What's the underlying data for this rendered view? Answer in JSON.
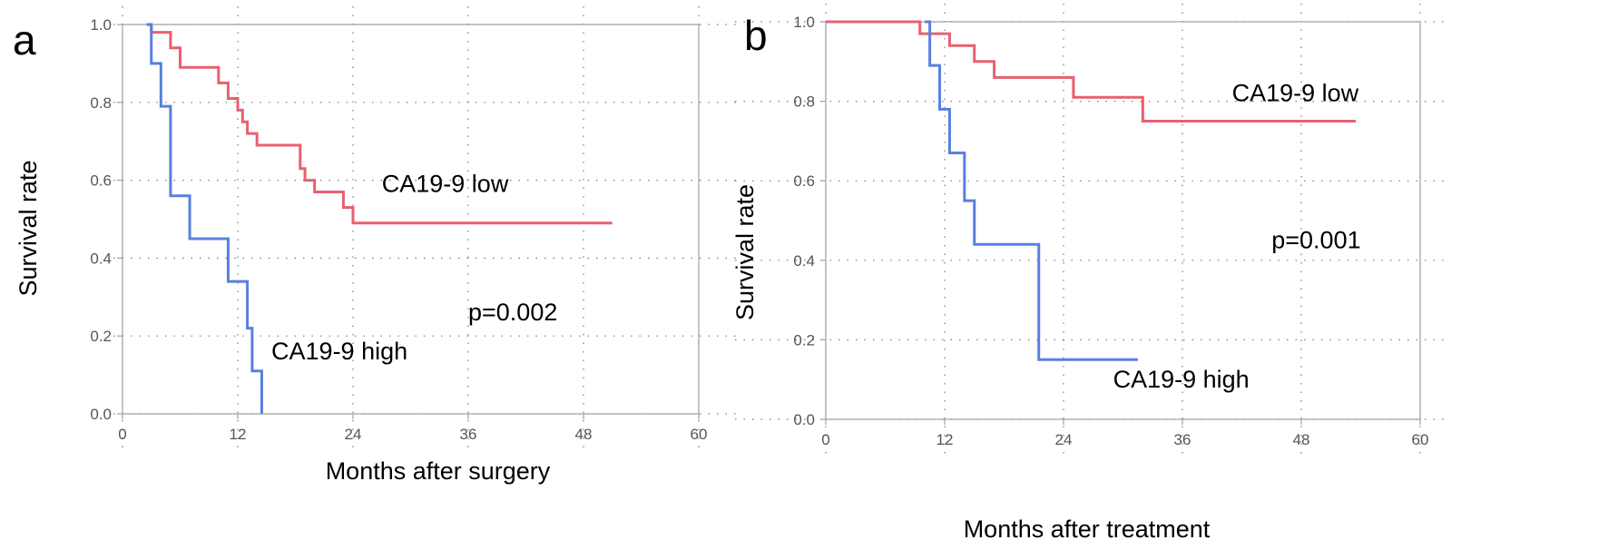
{
  "chart_data": [
    {
      "type": "line",
      "panel": "a",
      "title": "",
      "xlabel": "Months after surgery",
      "ylabel": "Survival rate",
      "xlim": [
        0,
        60
      ],
      "ylim": [
        0,
        1
      ],
      "xticks": [
        0,
        12,
        24,
        36,
        48,
        60
      ],
      "yticks": [
        "0.0",
        "0.2",
        "0.4",
        "0.6",
        "0.8",
        "1.0"
      ],
      "grid": true,
      "step": true,
      "p_value": "p=0.002",
      "series": [
        {
          "name": "CA19-9 low",
          "color": "#e8606f",
          "x": [
            3,
            5,
            6,
            10,
            11,
            12,
            12.5,
            13,
            14,
            15,
            18.5,
            19,
            20,
            23,
            24,
            51
          ],
          "y": [
            0.98,
            0.94,
            0.89,
            0.85,
            0.81,
            0.78,
            0.75,
            0.72,
            0.69,
            0.69,
            0.63,
            0.6,
            0.57,
            0.53,
            0.49,
            0.49
          ]
        },
        {
          "name": "CA19-9 high",
          "color": "#5a7fe0",
          "x": [
            2.5,
            3,
            4,
            5,
            7,
            11,
            13,
            13.5,
            14.5
          ],
          "y": [
            1.0,
            0.9,
            0.79,
            0.56,
            0.45,
            0.34,
            0.22,
            0.11,
            0.0
          ]
        }
      ],
      "annotations": [
        {
          "text": "CA19-9 low",
          "x": 27,
          "y": 0.57
        },
        {
          "text": "CA19-9 high",
          "x": 15.5,
          "y": 0.14
        },
        {
          "text": "p=0.002",
          "x": 36,
          "y": 0.24
        }
      ]
    },
    {
      "type": "line",
      "panel": "b",
      "title": "",
      "xlabel": "Months after treatment",
      "ylabel": "Survival rate",
      "xlim": [
        0,
        60
      ],
      "ylim": [
        0,
        1
      ],
      "xticks": [
        0,
        12,
        24,
        36,
        48,
        60
      ],
      "yticks": [
        "0.0",
        "0.2",
        "0.4",
        "0.6",
        "0.8",
        "1.0"
      ],
      "grid": true,
      "step": true,
      "p_value": "p=0.001",
      "series": [
        {
          "name": "CA19-9 low",
          "color": "#e8606f",
          "x": [
            0,
            9.5,
            12.5,
            15,
            17,
            25,
            32,
            53.5
          ],
          "y": [
            1.0,
            0.97,
            0.94,
            0.9,
            0.86,
            0.81,
            0.75,
            0.75
          ]
        },
        {
          "name": "CA19-9 high",
          "color": "#5a7fe0",
          "x": [
            10,
            10.5,
            11.5,
            12.5,
            14,
            15,
            21.5,
            31.5
          ],
          "y": [
            1.0,
            0.89,
            0.78,
            0.67,
            0.55,
            0.44,
            0.15,
            0.15
          ]
        }
      ],
      "annotations": [
        {
          "text": "CA19-9 low",
          "x": 41,
          "y": 0.8
        },
        {
          "text": "CA19-9 high",
          "x": 29,
          "y": 0.08
        },
        {
          "text": "p=0.001",
          "x": 45,
          "y": 0.43
        }
      ]
    }
  ]
}
